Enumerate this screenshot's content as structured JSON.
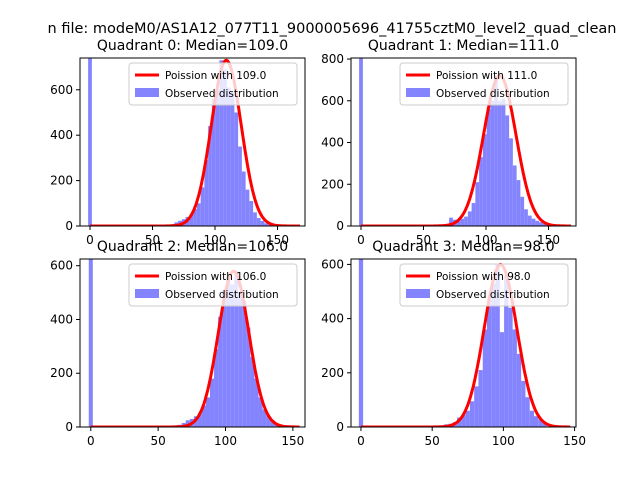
{
  "figure": {
    "suptitle": "n file: modeM0/AS1A12_077T11_9000005696_41755cztM0_level2_quad_clean"
  },
  "colors": {
    "hist": "#7777ff",
    "poisson": "#ff0000",
    "poisson_overlap": "#ff9a9a"
  },
  "chart_data": [
    {
      "type": "bar",
      "title": "Quadrant 0: Median=109.0",
      "legend": [
        "Poission with 109.0",
        "Observed distribution"
      ],
      "legend_loc": "upper right",
      "xlim": [
        -8,
        172
      ],
      "ylim": [
        0,
        740
      ],
      "xticks": [
        0,
        50,
        100,
        150
      ],
      "yticks": [
        0,
        200,
        400,
        600
      ],
      "poisson_mean": 109.0,
      "poisson_scale": 12,
      "hist_x": [
        0,
        66,
        69,
        72,
        75,
        78,
        81,
        84,
        87,
        90,
        93,
        96,
        99,
        102,
        105,
        108,
        111,
        114,
        117,
        120,
        123,
        126,
        129,
        132,
        135,
        138,
        141,
        144
      ],
      "hist_y": [
        740,
        8,
        16,
        23,
        30,
        40,
        50,
        75,
        100,
        170,
        290,
        440,
        560,
        600,
        730,
        690,
        610,
        590,
        500,
        350,
        240,
        160,
        110,
        60,
        35,
        22,
        12,
        6
      ],
      "hist_width": 3
    },
    {
      "type": "bar",
      "title": "Quadrant 1: Median=111.0",
      "legend": [
        "Poission with 111.0",
        "Observed distribution"
      ],
      "legend_loc": "upper right",
      "xlim": [
        -8,
        172
      ],
      "ylim": [
        0,
        805
      ],
      "xticks": [
        0,
        50,
        100,
        150
      ],
      "yticks": [
        0,
        200,
        400,
        600,
        800
      ],
      "poisson_mean": 111.0,
      "poisson_scale": 13,
      "hist_x": [
        0,
        69,
        72,
        75,
        78,
        81,
        84,
        87,
        90,
        93,
        96,
        99,
        102,
        105,
        108,
        111,
        114,
        117,
        120,
        123,
        126,
        129,
        132,
        135,
        138,
        141,
        144,
        147
      ],
      "hist_y": [
        805,
        10,
        40,
        30,
        25,
        35,
        45,
        70,
        110,
        210,
        330,
        440,
        560,
        600,
        720,
        600,
        610,
        530,
        420,
        290,
        220,
        140,
        80,
        50,
        35,
        25,
        18,
        10
      ],
      "hist_width": 3
    },
    {
      "type": "bar",
      "title": "Quadrant 2: Median=106.0",
      "legend": [
        "Poission with 106.0",
        "Observed distribution"
      ],
      "legend_loc": "upper right",
      "xlim": [
        -8,
        159
      ],
      "ylim": [
        0,
        625
      ],
      "xticks": [
        0,
        50,
        100,
        150
      ],
      "yticks": [
        0,
        200,
        400,
        600
      ],
      "poisson_mean": 106.0,
      "poisson_scale": 11.3,
      "hist_x": [
        0,
        66,
        69,
        72,
        75,
        78,
        81,
        84,
        87,
        90,
        93,
        96,
        99,
        102,
        105,
        108,
        111,
        114,
        117,
        120,
        123,
        126,
        129,
        132,
        135,
        138
      ],
      "hist_y": [
        625,
        8,
        15,
        25,
        30,
        40,
        50,
        80,
        110,
        180,
        290,
        410,
        510,
        560,
        530,
        580,
        500,
        470,
        370,
        260,
        180,
        110,
        65,
        40,
        25,
        12
      ],
      "hist_width": 3
    },
    {
      "type": "bar",
      "title": "Quadrant 3: Median=98.0",
      "legend": [
        "Poission with 98.0",
        "Observed distribution"
      ],
      "legend_loc": "upper right",
      "xlim": [
        -7,
        151
      ],
      "ylim": [
        0,
        620
      ],
      "xticks": [
        0,
        50,
        100,
        150
      ],
      "yticks": [
        0,
        200,
        400,
        600
      ],
      "poisson_mean": 98.0,
      "poisson_scale": 11.5,
      "hist_x": [
        0,
        57,
        60,
        63,
        66,
        69,
        72,
        75,
        78,
        81,
        84,
        87,
        90,
        93,
        96,
        99,
        102,
        105,
        108,
        111,
        114,
        117,
        120,
        123,
        126,
        129
      ],
      "hist_y": [
        620,
        5,
        10,
        12,
        18,
        35,
        45,
        60,
        95,
        150,
        210,
        360,
        470,
        530,
        600,
        350,
        560,
        440,
        360,
        270,
        170,
        110,
        60,
        40,
        28,
        14
      ],
      "hist_width": 3
    }
  ]
}
